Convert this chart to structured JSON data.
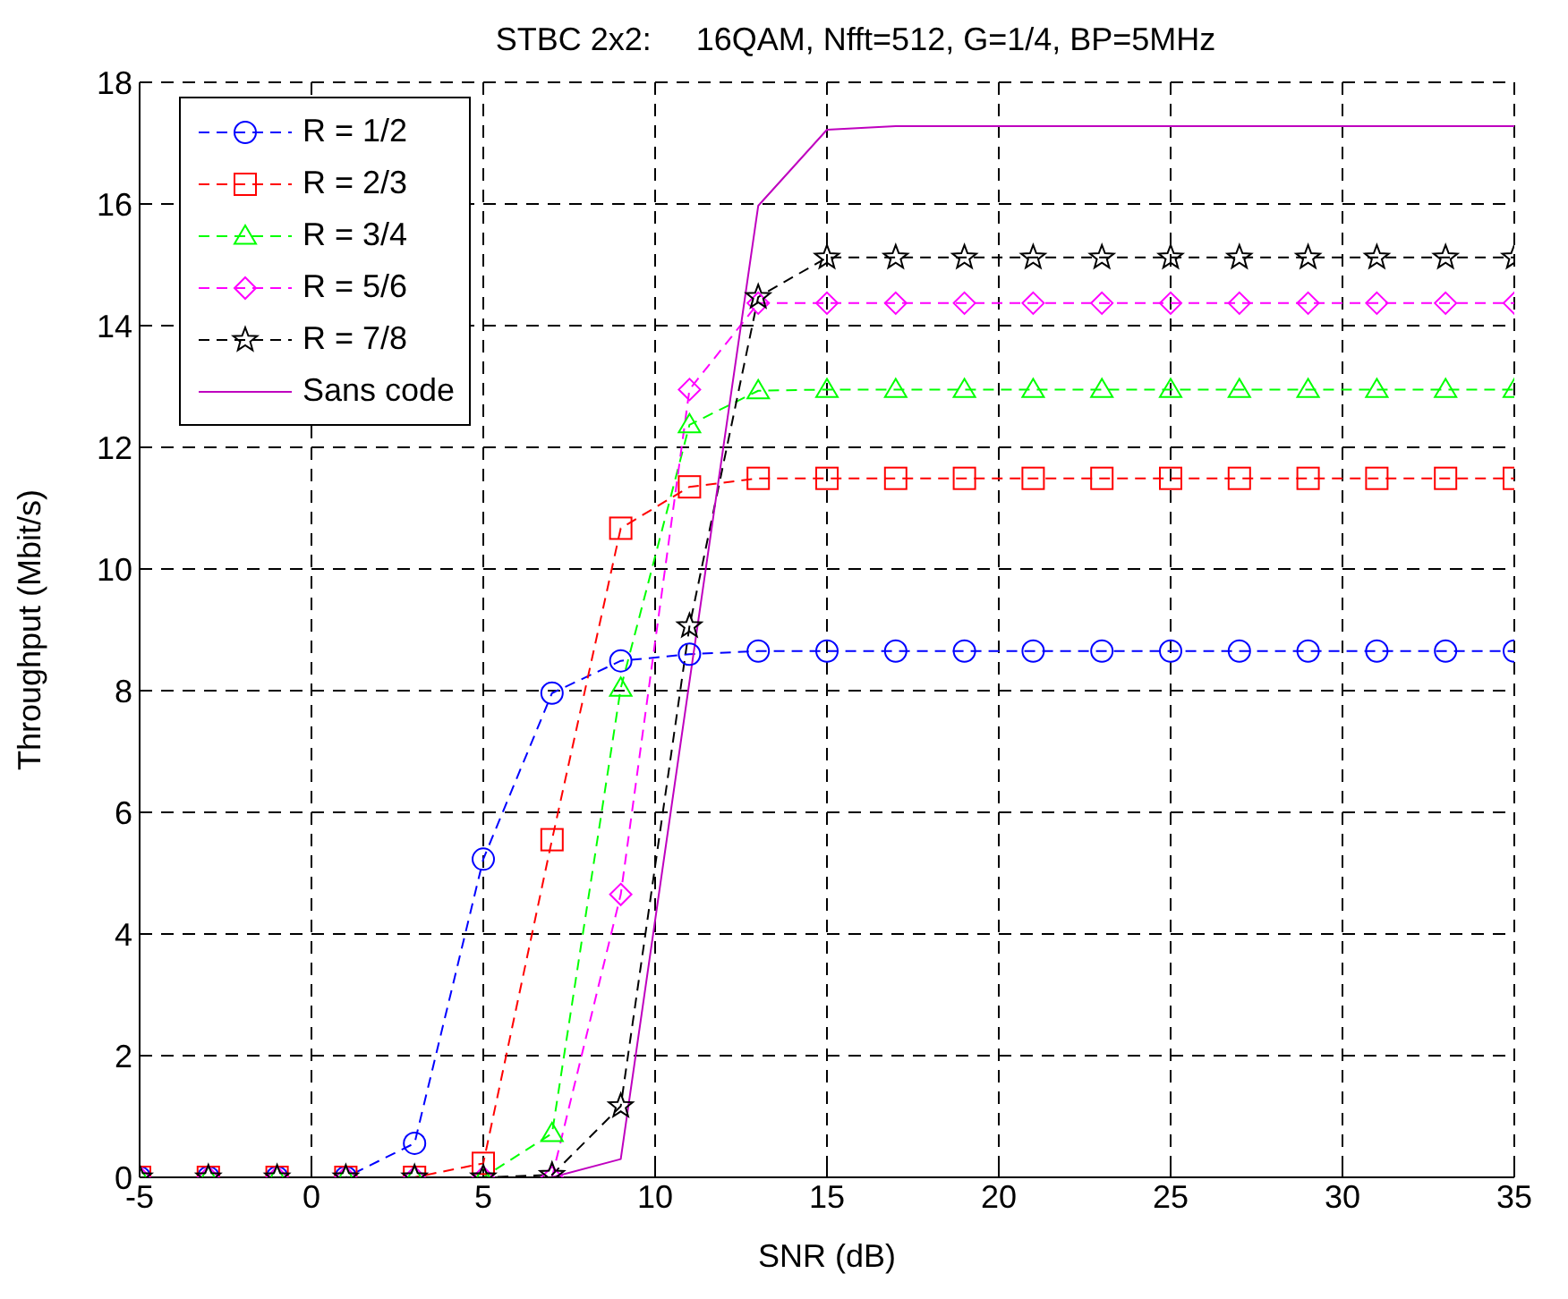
{
  "chart_data": {
    "type": "line",
    "title": "STBC 2x2:     16QAM, Nfft=512, G=1/4, BP=5MHz",
    "xlabel": "SNR (dB)",
    "ylabel": "Throughput (Mbit/s)",
    "x": [
      -5,
      -3,
      -1,
      1,
      3,
      5,
      7,
      9,
      11,
      13,
      15,
      17,
      19,
      21,
      23,
      25,
      27,
      29,
      31,
      33,
      35
    ],
    "series": [
      {
        "name": "R = 1/2",
        "color": "#0000ff",
        "marker": "circle",
        "line_style": "dashed",
        "values": [
          0,
          0,
          0,
          0,
          0.56,
          5.23,
          7.96,
          8.49,
          8.6,
          8.65,
          8.65,
          8.65,
          8.65,
          8.65,
          8.65,
          8.65,
          8.65,
          8.65,
          8.65,
          8.65,
          8.65
        ]
      },
      {
        "name": "R = 2/3",
        "color": "#ff0000",
        "marker": "square",
        "line_style": "dashed",
        "values": [
          0,
          0,
          0,
          0,
          0,
          0.23,
          5.55,
          10.67,
          11.35,
          11.49,
          11.49,
          11.49,
          11.49,
          11.49,
          11.49,
          11.49,
          11.49,
          11.49,
          11.49,
          11.49,
          11.49
        ]
      },
      {
        "name": "R = 3/4",
        "color": "#00ff00",
        "marker": "triangle",
        "line_style": "dashed",
        "values": [
          0,
          0,
          0,
          0,
          0,
          0,
          0.72,
          8.04,
          12.37,
          12.93,
          12.95,
          12.95,
          12.95,
          12.95,
          12.95,
          12.95,
          12.95,
          12.95,
          12.95,
          12.95,
          12.95
        ]
      },
      {
        "name": "R = 5/6",
        "color": "#ff00ff",
        "marker": "diamond",
        "line_style": "dashed",
        "values": [
          0,
          0,
          0,
          0,
          0,
          0,
          0,
          4.65,
          12.95,
          14.37,
          14.37,
          14.37,
          14.37,
          14.37,
          14.37,
          14.37,
          14.37,
          14.37,
          14.37,
          14.37,
          14.37
        ]
      },
      {
        "name": "R = 7/8",
        "color": "#000000",
        "marker": "star",
        "line_style": "dashed",
        "values": [
          0,
          0,
          0,
          0,
          0,
          0,
          0.04,
          1.17,
          9.06,
          14.47,
          15.12,
          15.12,
          15.12,
          15.12,
          15.12,
          15.12,
          15.12,
          15.12,
          15.12,
          15.12,
          15.12
        ]
      },
      {
        "name": "Sans code",
        "color": "#bf00bf",
        "marker": "none",
        "line_style": "solid",
        "values": [
          0,
          0,
          0,
          0,
          0,
          0,
          0,
          0.3,
          8.15,
          15.97,
          17.22,
          17.28,
          17.28,
          17.28,
          17.28,
          17.28,
          17.28,
          17.28,
          17.28,
          17.28,
          17.28
        ]
      }
    ],
    "xlim": [
      -5,
      35
    ],
    "xticks": [
      -5,
      0,
      5,
      10,
      15,
      20,
      25,
      30,
      35
    ],
    "ylim": [
      0,
      18
    ],
    "yticks": [
      0,
      2,
      4,
      6,
      8,
      10,
      12,
      14,
      16,
      18
    ],
    "grid": true,
    "legend": "top left"
  }
}
